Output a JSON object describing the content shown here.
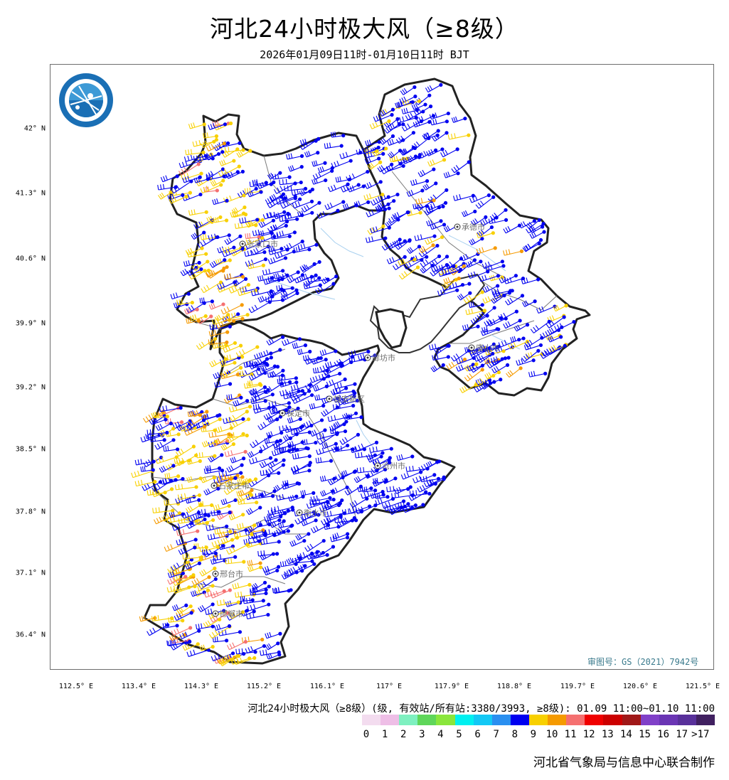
{
  "title": "河北24小时极大风（≥8级）",
  "subtitle": "2026年01月09日11时-01月10日11时 BJT",
  "lat_labels": [
    "42° N",
    "41.3° N",
    "40.6° N",
    "39.9° N",
    "39.2° N",
    "38.5° N",
    "37.8° N",
    "37.1° N",
    "36.4° N"
  ],
  "lon_labels": [
    "112.5° E",
    "113.4° E",
    "114.3° E",
    "115.2° E",
    "116.1° E",
    "117° E",
    "117.9° E",
    "118.8° E",
    "119.7° E",
    "120.6° E",
    "121.5° E"
  ],
  "cities": [
    "张家口市",
    "承德市",
    "唐山市",
    "廊坊市",
    "雄安新区",
    "保定市",
    "沧州市",
    "石家庄市",
    "衡水市",
    "邢台市",
    "邯郸市"
  ],
  "review_number": "审图号：GS（2021）7942号",
  "legend": {
    "title": "河北24小时极大风（≥8级）(级, 有效站/所有站:3380/3993, ≥8级): 01.09 11:00~01.10 11:00",
    "labels": [
      "0",
      "1",
      "2",
      "3",
      "4",
      "5",
      "6",
      "7",
      "8",
      "9",
      "10",
      "11",
      "12",
      "13",
      "14",
      "15",
      "16",
      "17",
      ">17"
    ],
    "colors": [
      "#f3dcef",
      "#eebee6",
      "#7ef0c0",
      "#5fd65a",
      "#8ae63c",
      "#00f0f0",
      "#13c8f5",
      "#2a8ff0",
      "#0000f0",
      "#f8d000",
      "#f59a00",
      "#f57070",
      "#f00000",
      "#cc0000",
      "#a01818",
      "#8040c8",
      "#6a35b4",
      "#58309a",
      "#402060"
    ]
  },
  "producer": "河北省气象局与信息中心联合制作",
  "logo_icon": "globe-icon"
}
